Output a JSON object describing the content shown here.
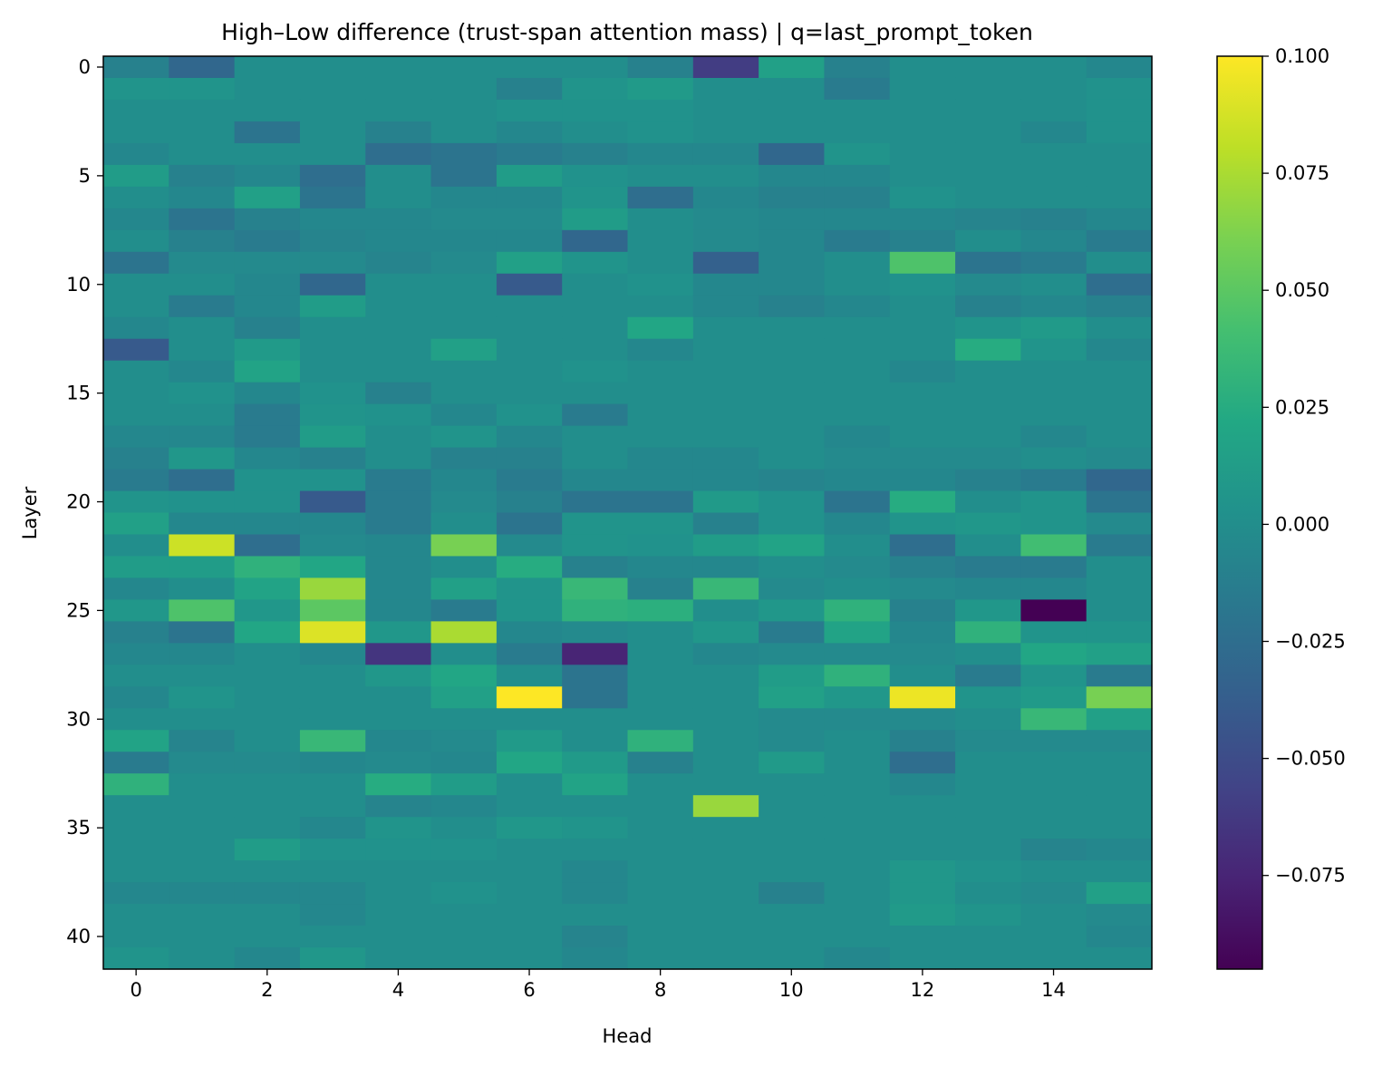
{
  "chart_data": {
    "type": "heatmap",
    "title": "High–Low difference (trust-span attention mass) | q=last_prompt_token",
    "xlabel": "Head",
    "ylabel": "Layer",
    "n_heads": 16,
    "n_layers": 42,
    "x_ticks": [
      0,
      2,
      4,
      6,
      8,
      10,
      12,
      14
    ],
    "y_ticks": [
      0,
      5,
      10,
      15,
      20,
      25,
      30,
      35,
      40
    ],
    "colormap": "viridis",
    "color_range": [
      -0.095,
      0.1
    ],
    "colorbar_ticks": [
      0.1,
      0.075,
      0.05,
      0.025,
      0.0,
      -0.025,
      -0.05,
      -0.075
    ],
    "colorbar_tick_labels": [
      "0.100",
      "0.075",
      "0.050",
      "0.025",
      "0.000",
      "−0.025",
      "−0.050",
      "−0.075"
    ],
    "values": [
      [
        -0.01,
        -0.03,
        0.0,
        0.0,
        0.0,
        0.0,
        0.0,
        0.0,
        -0.01,
        -0.06,
        0.015,
        -0.01,
        0.0,
        0.0,
        0.0,
        -0.005
      ],
      [
        0.005,
        0.005,
        0.0,
        0.0,
        0.0,
        0.0,
        -0.01,
        0.005,
        0.01,
        0.0,
        0.0,
        -0.015,
        0.0,
        0.0,
        0.0,
        0.003
      ],
      [
        0.0,
        0.0,
        0.0,
        0.0,
        0.0,
        0.0,
        0.003,
        0.003,
        0.003,
        0.0,
        0.0,
        0.0,
        0.0,
        0.0,
        0.0,
        0.003
      ],
      [
        0.0,
        0.0,
        -0.02,
        0.0,
        -0.01,
        0.0,
        -0.005,
        0.0,
        0.003,
        0.0,
        0.0,
        0.0,
        0.0,
        0.0,
        -0.005,
        0.003
      ],
      [
        -0.005,
        0.0,
        0.0,
        0.0,
        -0.025,
        -0.02,
        -0.015,
        -0.01,
        -0.005,
        -0.005,
        -0.03,
        0.005,
        0.0,
        0.0,
        0.0,
        0.0
      ],
      [
        0.012,
        -0.01,
        -0.005,
        -0.025,
        0.0,
        -0.02,
        0.012,
        0.003,
        0.0,
        0.0,
        -0.005,
        -0.005,
        0.0,
        0.0,
        0.0,
        0.0
      ],
      [
        0.0,
        -0.005,
        0.015,
        -0.02,
        0.0,
        -0.005,
        -0.005,
        0.005,
        -0.025,
        -0.005,
        -0.01,
        -0.01,
        0.003,
        0.0,
        0.0,
        0.0
      ],
      [
        -0.005,
        -0.02,
        -0.01,
        -0.005,
        -0.005,
        -0.003,
        -0.003,
        0.012,
        0.0,
        -0.003,
        -0.005,
        -0.005,
        -0.005,
        -0.008,
        -0.01,
        -0.005
      ],
      [
        0.0,
        -0.01,
        -0.015,
        -0.008,
        -0.005,
        -0.005,
        -0.005,
        -0.03,
        0.0,
        -0.003,
        -0.005,
        -0.015,
        -0.01,
        0.0,
        -0.005,
        -0.015
      ],
      [
        -0.02,
        -0.003,
        -0.003,
        -0.003,
        -0.008,
        -0.003,
        0.015,
        0.005,
        0.0,
        -0.035,
        -0.005,
        0.0,
        0.045,
        -0.02,
        -0.015,
        0.0
      ],
      [
        0.0,
        0.0,
        -0.005,
        -0.03,
        0.0,
        0.0,
        -0.04,
        0.0,
        0.003,
        -0.005,
        -0.005,
        0.0,
        0.003,
        -0.003,
        0.0,
        -0.025
      ],
      [
        0.0,
        -0.015,
        -0.005,
        0.012,
        0.0,
        0.0,
        0.0,
        0.0,
        0.0,
        -0.005,
        -0.01,
        -0.005,
        0.0,
        -0.01,
        -0.005,
        -0.01
      ],
      [
        -0.005,
        0.0,
        -0.01,
        0.0,
        0.0,
        0.0,
        0.0,
        0.0,
        0.02,
        0.0,
        0.0,
        0.0,
        0.0,
        0.005,
        0.01,
        0.0
      ],
      [
        -0.04,
        0.0,
        0.01,
        0.0,
        0.0,
        0.015,
        0.0,
        0.0,
        -0.005,
        0.0,
        0.0,
        0.0,
        0.0,
        0.025,
        0.005,
        -0.005
      ],
      [
        0.0,
        -0.005,
        0.018,
        0.0,
        0.0,
        0.0,
        0.0,
        0.003,
        0.0,
        0.0,
        0.0,
        0.0,
        -0.005,
        0.0,
        0.0,
        0.0
      ],
      [
        0.0,
        0.003,
        -0.005,
        0.003,
        -0.01,
        0.0,
        0.0,
        0.0,
        0.0,
        0.0,
        0.0,
        0.0,
        0.0,
        0.0,
        0.0,
        0.0
      ],
      [
        0.0,
        0.0,
        -0.015,
        0.005,
        0.003,
        -0.005,
        0.003,
        -0.015,
        0.0,
        0.0,
        0.0,
        0.0,
        0.0,
        0.0,
        0.0,
        0.0
      ],
      [
        -0.005,
        -0.005,
        -0.015,
        0.012,
        0.0,
        0.005,
        -0.005,
        0.0,
        0.0,
        0.0,
        0.0,
        -0.005,
        0.0,
        0.0,
        -0.005,
        0.0
      ],
      [
        -0.01,
        0.008,
        -0.005,
        -0.01,
        0.0,
        -0.01,
        -0.01,
        0.0,
        -0.005,
        -0.005,
        0.0,
        -0.003,
        -0.003,
        -0.003,
        0.0,
        -0.003
      ],
      [
        -0.015,
        -0.025,
        0.003,
        0.003,
        -0.015,
        -0.005,
        -0.015,
        -0.005,
        -0.005,
        -0.005,
        -0.008,
        -0.005,
        -0.005,
        -0.01,
        -0.015,
        -0.03
      ],
      [
        0.005,
        0.003,
        0.003,
        -0.04,
        -0.015,
        -0.003,
        -0.01,
        -0.02,
        -0.02,
        0.01,
        0.003,
        -0.02,
        0.025,
        0.0,
        0.005,
        -0.02
      ],
      [
        0.015,
        -0.005,
        -0.005,
        -0.005,
        -0.015,
        0.0,
        -0.02,
        0.005,
        0.005,
        -0.01,
        0.003,
        -0.005,
        0.005,
        0.008,
        0.005,
        -0.003
      ],
      [
        0.0,
        0.085,
        -0.025,
        -0.003,
        -0.005,
        0.06,
        -0.003,
        0.005,
        0.003,
        0.012,
        0.018,
        0.0,
        -0.025,
        0.0,
        0.04,
        -0.015
      ],
      [
        0.012,
        0.012,
        0.03,
        0.02,
        -0.005,
        0.0,
        0.025,
        -0.01,
        -0.005,
        -0.005,
        0.0,
        -0.003,
        -0.01,
        -0.015,
        -0.015,
        0.0
      ],
      [
        -0.005,
        0.0,
        0.018,
        0.07,
        -0.005,
        0.015,
        0.005,
        0.035,
        -0.01,
        0.035,
        -0.003,
        0.0,
        -0.003,
        -0.005,
        -0.005,
        0.0
      ],
      [
        0.008,
        0.045,
        0.008,
        0.05,
        -0.005,
        -0.015,
        0.005,
        0.03,
        0.028,
        0.0,
        0.008,
        0.03,
        -0.01,
        0.008,
        -0.095,
        0.0
      ],
      [
        -0.01,
        -0.02,
        0.02,
        0.09,
        0.008,
        0.075,
        -0.005,
        -0.003,
        0.0,
        0.008,
        -0.015,
        0.018,
        -0.005,
        0.03,
        0.005,
        0.005
      ],
      [
        -0.005,
        -0.005,
        0.0,
        -0.005,
        -0.065,
        0.0,
        -0.015,
        -0.075,
        0.0,
        -0.005,
        -0.003,
        -0.003,
        -0.003,
        0.0,
        0.02,
        0.015
      ],
      [
        0.0,
        0.0,
        0.0,
        0.0,
        0.008,
        0.02,
        0.0,
        -0.02,
        0.0,
        0.0,
        0.012,
        0.03,
        0.0,
        -0.015,
        0.005,
        -0.015
      ],
      [
        -0.005,
        0.005,
        0.0,
        0.0,
        0.0,
        0.015,
        0.1,
        -0.02,
        0.0,
        0.0,
        0.015,
        0.008,
        0.095,
        0.005,
        0.01,
        0.06
      ],
      [
        0.0,
        0.0,
        0.0,
        0.0,
        0.0,
        0.0,
        0.0,
        0.0,
        0.0,
        0.0,
        -0.003,
        -0.003,
        -0.003,
        0.0,
        0.035,
        0.015
      ],
      [
        0.018,
        -0.008,
        0.0,
        0.035,
        -0.005,
        -0.003,
        0.01,
        0.0,
        0.03,
        0.0,
        -0.003,
        0.0,
        -0.01,
        -0.003,
        -0.003,
        -0.003
      ],
      [
        -0.015,
        -0.003,
        -0.003,
        -0.005,
        -0.003,
        -0.005,
        0.02,
        0.01,
        -0.01,
        0.0,
        0.01,
        0.0,
        -0.025,
        0.0,
        0.0,
        0.0
      ],
      [
        0.03,
        0.0,
        0.0,
        0.0,
        0.025,
        0.012,
        0.0,
        0.018,
        0.0,
        0.0,
        0.0,
        0.0,
        -0.005,
        0.0,
        0.0,
        0.0
      ],
      [
        0.0,
        0.0,
        0.0,
        0.0,
        -0.008,
        -0.005,
        0.0,
        0.0,
        0.0,
        0.07,
        0.0,
        0.0,
        0.0,
        0.0,
        0.0,
        0.0
      ],
      [
        0.0,
        0.0,
        0.0,
        -0.005,
        0.005,
        0.0,
        0.008,
        0.005,
        0.0,
        0.0,
        0.0,
        0.0,
        0.0,
        0.0,
        0.0,
        0.0
      ],
      [
        0.0,
        0.0,
        0.012,
        0.003,
        0.003,
        0.003,
        0.0,
        0.0,
        0.0,
        0.0,
        0.0,
        0.0,
        0.0,
        0.0,
        -0.008,
        -0.005
      ],
      [
        0.0,
        0.0,
        0.0,
        0.0,
        0.0,
        0.0,
        0.0,
        -0.005,
        0.0,
        0.0,
        0.0,
        0.0,
        0.008,
        0.003,
        0.0,
        0.0
      ],
      [
        -0.005,
        -0.005,
        -0.005,
        -0.005,
        0.0,
        0.003,
        0.0,
        -0.005,
        0.0,
        0.0,
        -0.01,
        0.0,
        0.008,
        0.0,
        -0.003,
        0.015
      ],
      [
        0.0,
        0.0,
        0.0,
        -0.005,
        0.0,
        0.0,
        0.0,
        0.0,
        0.0,
        0.0,
        0.0,
        0.0,
        0.01,
        0.005,
        0.0,
        -0.003
      ],
      [
        0.0,
        0.0,
        0.0,
        0.0,
        0.0,
        0.0,
        0.0,
        -0.008,
        0.0,
        0.0,
        0.0,
        0.0,
        0.0,
        0.0,
        0.0,
        -0.005
      ],
      [
        0.005,
        0.0,
        -0.005,
        0.008,
        0.0,
        0.0,
        0.0,
        -0.005,
        0.0,
        0.0,
        0.0,
        -0.005,
        0.0,
        0.0,
        0.0,
        0.0
      ]
    ]
  }
}
